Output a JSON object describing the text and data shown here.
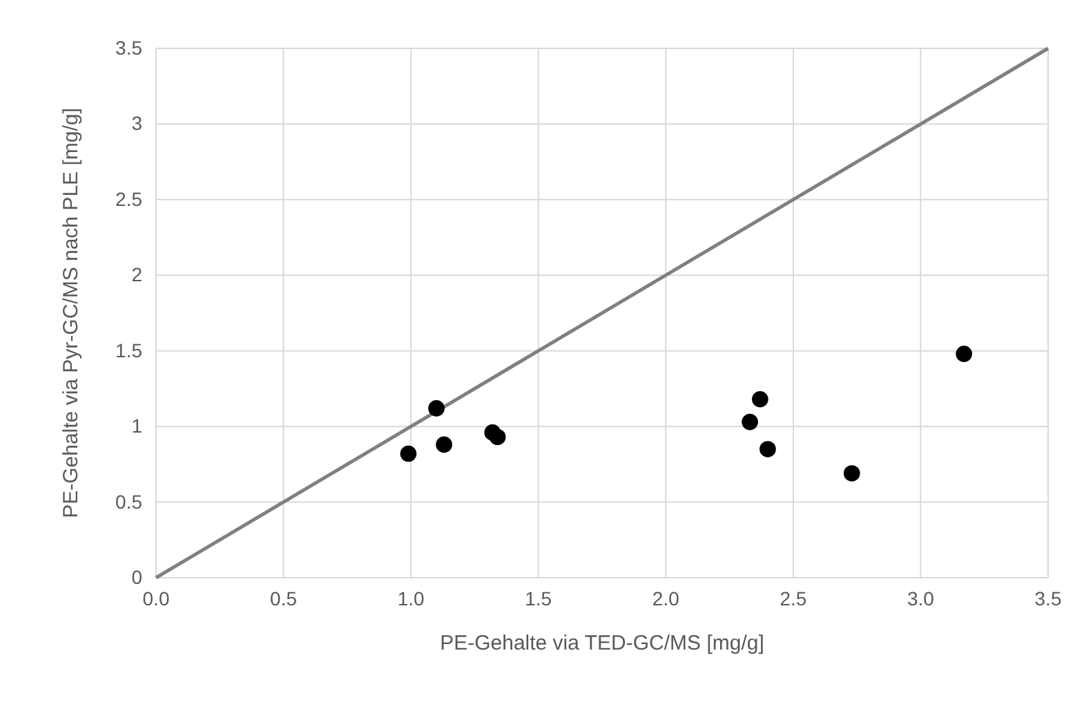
{
  "chart_data": {
    "type": "scatter",
    "xlabel": "PE-Gehalte via TED-GC/MS [mg/g]",
    "ylabel": "PE-Gehalte via Pyr-GC/MS nach PLE [mg/g]",
    "xlim": [
      0,
      3.5
    ],
    "ylim": [
      0,
      3.5
    ],
    "xticks": [
      {
        "value": 0,
        "label": "0.0"
      },
      {
        "value": 0.5,
        "label": "0.5"
      },
      {
        "value": 1,
        "label": "1.0"
      },
      {
        "value": 1.5,
        "label": "1.5"
      },
      {
        "value": 2,
        "label": "2.0"
      },
      {
        "value": 2.5,
        "label": "2.5"
      },
      {
        "value": 3,
        "label": "3.0"
      },
      {
        "value": 3.5,
        "label": "3.5"
      }
    ],
    "yticks": [
      0,
      0.5,
      1,
      1.5,
      2,
      2.5,
      3,
      3.5
    ],
    "grid": true,
    "series": [
      {
        "type": "line",
        "color": "#808080",
        "x": [
          0,
          3.5
        ],
        "values": [
          0,
          3.5
        ]
      },
      {
        "color": "#000000",
        "marker": "circle",
        "x": [
          0.99,
          1.1,
          1.13,
          1.32,
          1.34,
          2.33,
          2.37,
          2.4,
          2.73,
          3.17
        ],
        "values": [
          0.82,
          1.12,
          0.88,
          0.96,
          0.93,
          1.03,
          1.18,
          0.85,
          0.69,
          1.48
        ]
      }
    ]
  }
}
